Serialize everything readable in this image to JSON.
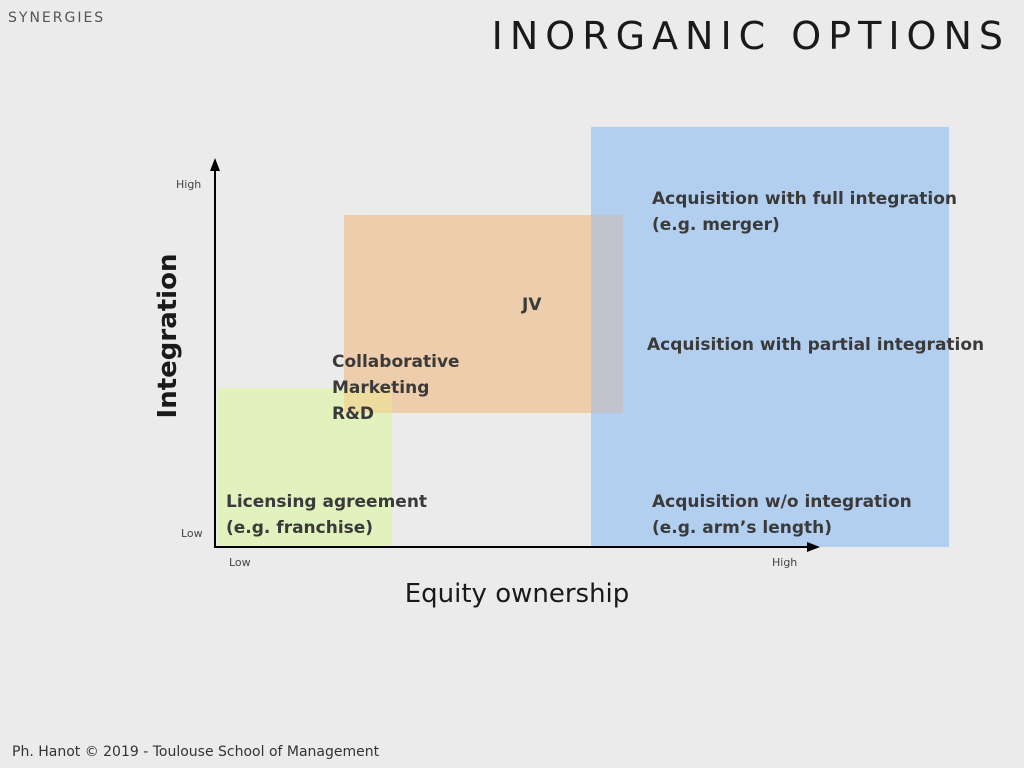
{
  "header": {
    "section": "SYNERGIES",
    "title": "INORGANIC OPTIONS"
  },
  "diagram": {
    "y_axis_title": "Integration",
    "x_axis_title": "Equity ownership",
    "y_ticks": {
      "high": "High",
      "low": "Low"
    },
    "x_ticks": {
      "low": "Low",
      "high": "High"
    },
    "labels": {
      "licensing": [
        "Licensing agreement",
        "(e.g. franchise)"
      ],
      "collaborative": [
        "Collaborative",
        "Marketing",
        "R&D"
      ],
      "jv": "JV",
      "acq_full": [
        "Acquisition with full integration",
        "(e.g. merger)"
      ],
      "acq_partial": "Acquisition with partial integration",
      "acq_none": [
        "Acquisition w/o integration",
        "(e.g. arm’s length)"
      ]
    },
    "colors": {
      "green": "#e2f2be",
      "orange": "#edcdab",
      "blue": "#b3cff0",
      "orange_blue_overlap": "#c1c4cf",
      "green_orange_overlap": "#eedc9e",
      "axis": "#000000"
    }
  },
  "footer": {
    "text": "Ph. Hanot © 2019  -  Toulouse School of Management"
  }
}
